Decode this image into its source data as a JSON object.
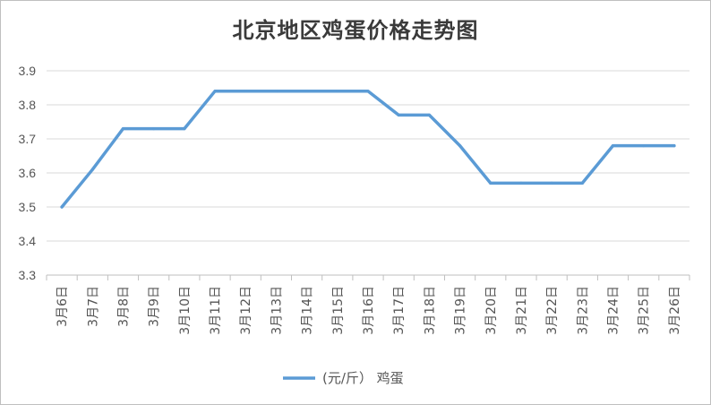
{
  "chart_data": {
    "type": "line",
    "title": "北京地区鸡蛋价格走势图",
    "xlabel": "",
    "ylabel": "",
    "categories": [
      "3月6日",
      "3月7日",
      "3月8日",
      "3月9日",
      "3月10日",
      "3月11日",
      "3月12日",
      "3月13日",
      "3月14日",
      "3月15日",
      "3月16日",
      "3月17日",
      "3月18日",
      "3月19日",
      "3月20日",
      "3月21日",
      "3月22日",
      "3月23日",
      "3月24日",
      "3月25日",
      "3月26日"
    ],
    "series": [
      {
        "name": "(元/斤） 鸡蛋",
        "color": "#5b9bd5",
        "values": [
          3.5,
          3.61,
          3.73,
          3.73,
          3.73,
          3.84,
          3.84,
          3.84,
          3.84,
          3.84,
          3.84,
          3.77,
          3.77,
          3.68,
          3.57,
          3.57,
          3.57,
          3.57,
          3.68,
          3.68,
          3.68
        ]
      }
    ],
    "ylim": [
      3.3,
      3.9
    ],
    "yticks": [
      "3.3",
      "3.4",
      "3.5",
      "3.6",
      "3.7",
      "3.8",
      "3.9"
    ],
    "grid": true,
    "legend": "bottom"
  }
}
